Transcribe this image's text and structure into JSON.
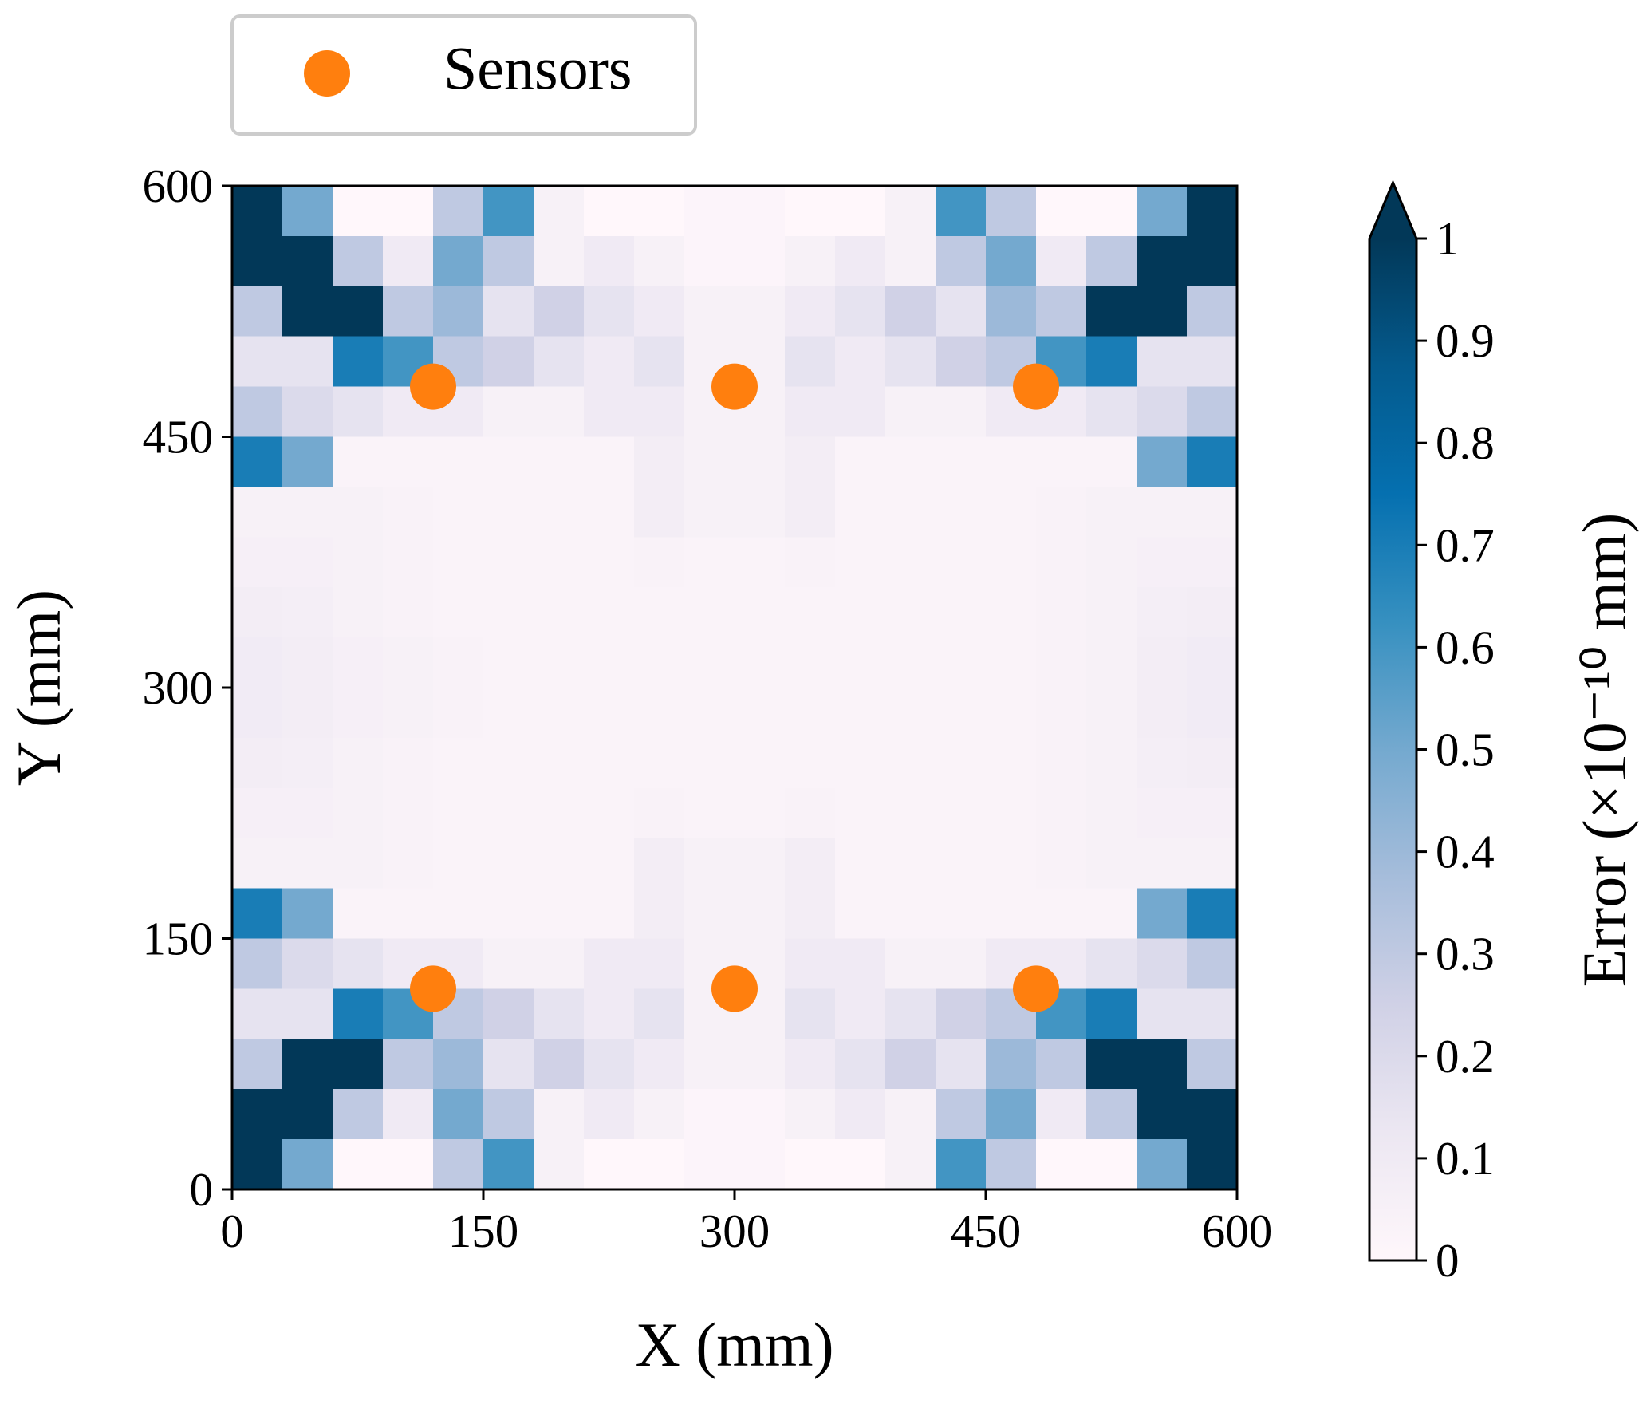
{
  "chart_data": {
    "type": "heatmap",
    "xlabel": "X (mm)",
    "ylabel": "Y (mm)",
    "xlim": [
      0,
      600
    ],
    "ylim": [
      0,
      600
    ],
    "xticks": [
      0,
      150,
      300,
      450,
      600
    ],
    "yticks": [
      0,
      150,
      300,
      450,
      600
    ],
    "z": [
      [
        1,
        0.5,
        0,
        0,
        0.3,
        0.6,
        0.05,
        0,
        0,
        0.02,
        0.02,
        0,
        0,
        0.05,
        0.6,
        0.3,
        0,
        0,
        0.5,
        1
      ],
      [
        1,
        1,
        0.3,
        0.1,
        0.5,
        0.3,
        0.05,
        0.1,
        0.05,
        0.02,
        0.02,
        0.05,
        0.1,
        0.05,
        0.3,
        0.5,
        0.1,
        0.3,
        1,
        1
      ],
      [
        0.3,
        1,
        1,
        0.3,
        0.4,
        0.15,
        0.25,
        0.15,
        0.1,
        0.05,
        0.05,
        0.1,
        0.15,
        0.25,
        0.15,
        0.4,
        0.3,
        1,
        1,
        0.3
      ],
      [
        0.15,
        0.15,
        0.7,
        0.6,
        0.3,
        0.25,
        0.15,
        0.1,
        0.15,
        0.05,
        0.05,
        0.15,
        0.1,
        0.15,
        0.25,
        0.3,
        0.6,
        0.7,
        0.15,
        0.15
      ],
      [
        0.3,
        0.2,
        0.15,
        0.1,
        0.1,
        0.05,
        0.05,
        0.1,
        0.1,
        0.05,
        0.05,
        0.1,
        0.1,
        0.05,
        0.05,
        0.1,
        0.1,
        0.15,
        0.2,
        0.3
      ],
      [
        0.7,
        0.5,
        0.03,
        0.03,
        0.03,
        0.03,
        0.03,
        0.03,
        0.08,
        0.05,
        0.05,
        0.08,
        0.03,
        0.03,
        0.03,
        0.03,
        0.03,
        0.03,
        0.5,
        0.7
      ],
      [
        0.05,
        0.05,
        0.05,
        0.04,
        0.03,
        0.03,
        0.03,
        0.03,
        0.08,
        0.05,
        0.05,
        0.08,
        0.03,
        0.03,
        0.03,
        0.03,
        0.04,
        0.05,
        0.05,
        0.05
      ],
      [
        0.06,
        0.06,
        0.05,
        0.04,
        0.03,
        0.03,
        0.03,
        0.03,
        0.04,
        0.03,
        0.03,
        0.04,
        0.03,
        0.03,
        0.03,
        0.03,
        0.04,
        0.05,
        0.06,
        0.06
      ],
      [
        0.08,
        0.07,
        0.05,
        0.04,
        0.03,
        0.03,
        0.03,
        0.03,
        0.03,
        0.03,
        0.03,
        0.03,
        0.03,
        0.03,
        0.03,
        0.03,
        0.04,
        0.05,
        0.07,
        0.08
      ],
      [
        0.09,
        0.08,
        0.06,
        0.05,
        0.04,
        0.03,
        0.03,
        0.03,
        0.03,
        0.03,
        0.03,
        0.03,
        0.03,
        0.03,
        0.03,
        0.03,
        0.04,
        0.05,
        0.08,
        0.09
      ],
      [
        0.09,
        0.08,
        0.06,
        0.05,
        0.04,
        0.03,
        0.03,
        0.03,
        0.03,
        0.03,
        0.03,
        0.03,
        0.03,
        0.03,
        0.03,
        0.03,
        0.04,
        0.05,
        0.08,
        0.09
      ],
      [
        0.08,
        0.07,
        0.05,
        0.04,
        0.03,
        0.03,
        0.03,
        0.03,
        0.03,
        0.03,
        0.03,
        0.03,
        0.03,
        0.03,
        0.03,
        0.03,
        0.04,
        0.05,
        0.07,
        0.08
      ],
      [
        0.06,
        0.06,
        0.05,
        0.04,
        0.03,
        0.03,
        0.03,
        0.03,
        0.04,
        0.03,
        0.03,
        0.04,
        0.03,
        0.03,
        0.03,
        0.03,
        0.04,
        0.05,
        0.06,
        0.06
      ],
      [
        0.05,
        0.05,
        0.05,
        0.04,
        0.03,
        0.03,
        0.03,
        0.03,
        0.08,
        0.05,
        0.05,
        0.08,
        0.03,
        0.03,
        0.03,
        0.03,
        0.04,
        0.05,
        0.05,
        0.05
      ],
      [
        0.7,
        0.5,
        0.03,
        0.03,
        0.03,
        0.03,
        0.03,
        0.03,
        0.08,
        0.05,
        0.05,
        0.08,
        0.03,
        0.03,
        0.03,
        0.03,
        0.03,
        0.03,
        0.5,
        0.7
      ],
      [
        0.3,
        0.2,
        0.15,
        0.1,
        0.1,
        0.05,
        0.05,
        0.1,
        0.1,
        0.05,
        0.05,
        0.1,
        0.1,
        0.05,
        0.05,
        0.1,
        0.1,
        0.15,
        0.2,
        0.3
      ],
      [
        0.15,
        0.15,
        0.7,
        0.6,
        0.3,
        0.25,
        0.15,
        0.1,
        0.15,
        0.05,
        0.05,
        0.15,
        0.1,
        0.15,
        0.25,
        0.3,
        0.6,
        0.7,
        0.15,
        0.15
      ],
      [
        0.3,
        1,
        1,
        0.3,
        0.4,
        0.15,
        0.25,
        0.15,
        0.1,
        0.05,
        0.05,
        0.1,
        0.15,
        0.25,
        0.15,
        0.4,
        0.3,
        1,
        1,
        0.3
      ],
      [
        1,
        1,
        0.3,
        0.1,
        0.5,
        0.3,
        0.05,
        0.1,
        0.05,
        0.02,
        0.02,
        0.05,
        0.1,
        0.05,
        0.3,
        0.5,
        0.1,
        0.3,
        1,
        1
      ],
      [
        1,
        0.5,
        0,
        0,
        0.3,
        0.6,
        0.05,
        0,
        0,
        0.02,
        0.02,
        0,
        0,
        0.05,
        0.6,
        0.3,
        0,
        0,
        0.5,
        1
      ]
    ],
    "colormap": [
      "#fff7fb",
      "#ece7f2",
      "#d0d1e6",
      "#a6bddb",
      "#74a9cf",
      "#3690c0",
      "#0570b0",
      "#045a8d",
      "#023858"
    ],
    "extend": "max",
    "zlim": [
      0,
      1
    ],
    "zticks": [
      0,
      0.1,
      0.2,
      0.3,
      0.4,
      0.5,
      0.6,
      0.7,
      0.8,
      0.9,
      1
    ],
    "colorbar_label": "Error (×10⁻¹⁰ mm)",
    "legend": "upper left",
    "series": [
      {
        "name": "Sensors",
        "color": "#ff7f0e",
        "x": [
          120,
          300,
          480,
          120,
          300,
          480
        ],
        "y": [
          480,
          480,
          480,
          120,
          120,
          120
        ]
      }
    ]
  }
}
